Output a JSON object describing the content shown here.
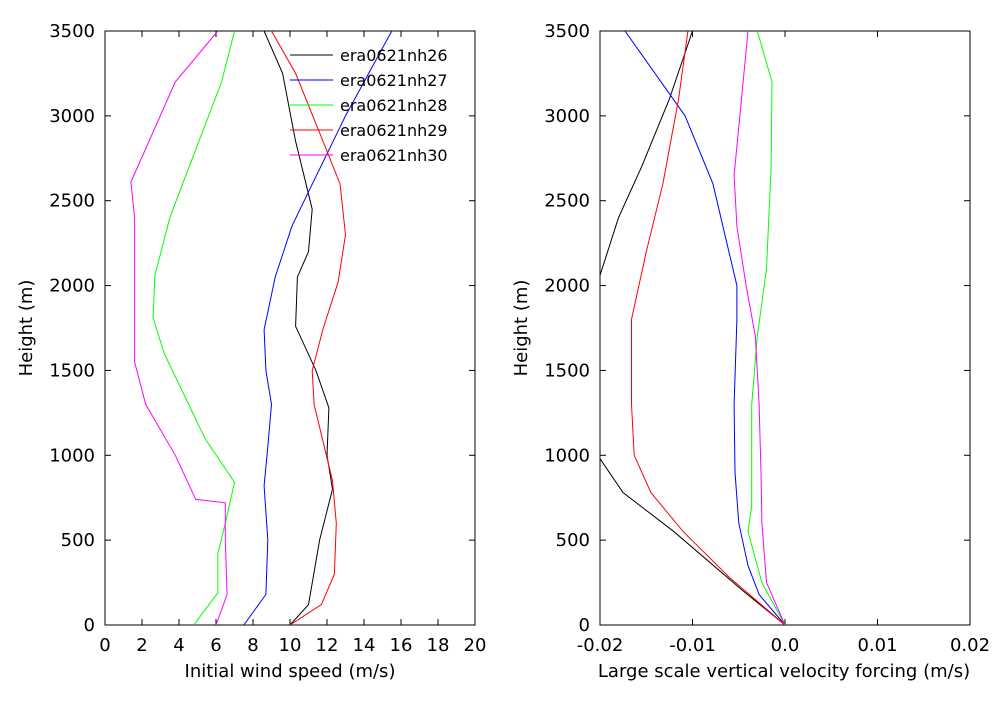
{
  "chart_data": [
    {
      "type": "line",
      "xlabel": "Initial wind speed (m/s)",
      "ylabel": "Height (m)",
      "xlim": [
        0,
        20
      ],
      "ylim": [
        0,
        3500
      ],
      "xticks": [
        "0",
        "2",
        "4",
        "6",
        "8",
        "10",
        "12",
        "14",
        "16",
        "18",
        "20"
      ],
      "yticks": [
        "0",
        "500",
        "1000",
        "1500",
        "2000",
        "2500",
        "3000",
        "3500"
      ],
      "grid": false,
      "legend_position": "top-right",
      "series": [
        {
          "name": "era0621nh26",
          "color": "#000000",
          "points": [
            [
              10.0,
              0
            ],
            [
              11.0,
              120
            ],
            [
              11.6,
              500
            ],
            [
              12.3,
              800
            ],
            [
              12.0,
              1000
            ],
            [
              12.1,
              1280
            ],
            [
              11.4,
              1500
            ],
            [
              10.3,
              1760
            ],
            [
              10.4,
              2050
            ],
            [
              11.0,
              2200
            ],
            [
              11.2,
              2450
            ],
            [
              10.3,
              2850
            ],
            [
              9.6,
              3250
            ],
            [
              8.6,
              3500
            ]
          ]
        },
        {
          "name": "era0621nh27",
          "color": "#0000ff",
          "points": [
            [
              7.5,
              0
            ],
            [
              8.7,
              180
            ],
            [
              8.8,
              500
            ],
            [
              8.6,
              820
            ],
            [
              8.8,
              1050
            ],
            [
              9.0,
              1300
            ],
            [
              8.7,
              1500
            ],
            [
              8.6,
              1740
            ],
            [
              9.2,
              2050
            ],
            [
              10.1,
              2350
            ],
            [
              11.3,
              2620
            ],
            [
              13.0,
              3000
            ],
            [
              15.5,
              3500
            ]
          ]
        },
        {
          "name": "era0621nh28",
          "color": "#00ff00",
          "points": [
            [
              4.8,
              0
            ],
            [
              6.1,
              190
            ],
            [
              6.1,
              420
            ],
            [
              6.5,
              600
            ],
            [
              7.0,
              840
            ],
            [
              5.4,
              1100
            ],
            [
              4.3,
              1350
            ],
            [
              3.2,
              1600
            ],
            [
              2.6,
              1810
            ],
            [
              2.7,
              2060
            ],
            [
              3.5,
              2400
            ],
            [
              4.2,
              2600
            ],
            [
              6.3,
              3200
            ],
            [
              7.0,
              3500
            ]
          ]
        },
        {
          "name": "era0621nh29",
          "color": "#ff0000",
          "points": [
            [
              10.0,
              0
            ],
            [
              11.7,
              120
            ],
            [
              12.4,
              300
            ],
            [
              12.5,
              600
            ],
            [
              12.3,
              850
            ],
            [
              11.3,
              1300
            ],
            [
              11.2,
              1500
            ],
            [
              11.8,
              1750
            ],
            [
              12.6,
              2020
            ],
            [
              13.0,
              2300
            ],
            [
              12.7,
              2600
            ],
            [
              11.6,
              2900
            ],
            [
              10.3,
              3250
            ],
            [
              9.0,
              3500
            ]
          ]
        },
        {
          "name": "era0621nh30",
          "color": "#ff00ff",
          "points": [
            [
              6.0,
              0
            ],
            [
              6.6,
              180
            ],
            [
              6.5,
              500
            ],
            [
              6.5,
              720
            ],
            [
              4.9,
              740
            ],
            [
              3.8,
              1000
            ],
            [
              2.2,
              1300
            ],
            [
              1.6,
              1550
            ],
            [
              1.6,
              2000
            ],
            [
              1.6,
              2400
            ],
            [
              1.4,
              2610
            ],
            [
              3.8,
              3200
            ],
            [
              6.1,
              3500
            ]
          ]
        }
      ]
    },
    {
      "type": "line",
      "xlabel": "Large scale vertical velocity forcing (m/s)",
      "ylabel": "Height (m)",
      "xlim": [
        -0.02,
        0.02
      ],
      "ylim": [
        0,
        3500
      ],
      "xticks": [
        "-0.02",
        "-0.01",
        "0.0",
        "0.01",
        "0.02"
      ],
      "yticks": [
        "0",
        "500",
        "1000",
        "1500",
        "2000",
        "2500",
        "3000",
        "3500"
      ],
      "grid": false,
      "series": [
        {
          "color": "#000000",
          "points": [
            [
              0.0,
              0
            ],
            [
              -0.0045,
              200
            ],
            [
              -0.012,
              550
            ],
            [
              -0.0175,
              780
            ],
            [
              -0.02,
              980
            ]
          ],
          "points_top": [
            [
              -0.02,
              2060
            ],
            [
              -0.018,
              2400
            ],
            [
              -0.0155,
              2700
            ],
            [
              -0.0125,
              3100
            ],
            [
              -0.01,
              3500
            ]
          ]
        },
        {
          "color": "#0000ff",
          "points": [
            [
              0.0,
              0
            ],
            [
              -0.0028,
              180
            ],
            [
              -0.004,
              350
            ],
            [
              -0.005,
              600
            ],
            [
              -0.0054,
              900
            ],
            [
              -0.0055,
              1300
            ],
            [
              -0.0052,
              1800
            ],
            [
              -0.0052,
              2000
            ],
            [
              -0.0065,
              2300
            ],
            [
              -0.0078,
              2600
            ],
            [
              -0.0108,
              3000
            ],
            [
              -0.0173,
              3500
            ]
          ]
        },
        {
          "color": "#00ff00",
          "points": [
            [
              0.0,
              0
            ],
            [
              -0.0025,
              250
            ],
            [
              -0.004,
              550
            ],
            [
              -0.0036,
              700
            ],
            [
              -0.0036,
              1300
            ],
            [
              -0.003,
              1700
            ],
            [
              -0.002,
              2100
            ],
            [
              -0.0015,
              2700
            ],
            [
              -0.0014,
              3200
            ],
            [
              -0.003,
              3500
            ]
          ]
        },
        {
          "color": "#ff0000",
          "points": [
            [
              0.0,
              0
            ],
            [
              -0.006,
              280
            ],
            [
              -0.011,
              550
            ],
            [
              -0.0145,
              780
            ],
            [
              -0.0163,
              1000
            ],
            [
              -0.0166,
              1300
            ],
            [
              -0.0166,
              1800
            ],
            [
              -0.015,
              2200
            ],
            [
              -0.0132,
              2600
            ],
            [
              -0.0115,
              3100
            ],
            [
              -0.0105,
              3500
            ]
          ]
        },
        {
          "color": "#ff00ff",
          "points": [
            [
              0.0,
              0
            ],
            [
              -0.002,
              250
            ],
            [
              -0.0025,
              600
            ],
            [
              -0.0026,
              900
            ],
            [
              -0.0028,
              1300
            ],
            [
              -0.0032,
              1700
            ],
            [
              -0.0042,
              2000
            ],
            [
              -0.0052,
              2350
            ],
            [
              -0.0055,
              2650
            ],
            [
              -0.0047,
              3100
            ],
            [
              -0.004,
              3500
            ]
          ]
        }
      ]
    }
  ]
}
